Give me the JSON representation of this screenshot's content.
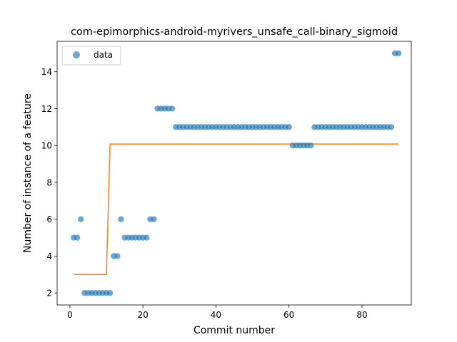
{
  "chart_data": {
    "type": "scatter",
    "title": "com-epimorphics-android-myrivers_unsafe_call-binary_sigmoid",
    "xlabel": "Commit number",
    "ylabel": "Number of instance of a feature",
    "xlim": [
      -3.5,
      93.5
    ],
    "ylim": [
      1.35,
      15.65
    ],
    "x_ticks": [
      0,
      20,
      40,
      60,
      80
    ],
    "y_ticks": [
      2,
      4,
      6,
      8,
      10,
      12,
      14
    ],
    "grid": false,
    "legend": {
      "position": "top-left",
      "entries": [
        "data"
      ]
    },
    "colors": {
      "data": "#1f77b4",
      "fit": "#ff7f0e"
    },
    "series": [
      {
        "name": "data",
        "kind": "scatter",
        "x": [
          1,
          2,
          3,
          4,
          5,
          6,
          7,
          8,
          9,
          10,
          11,
          12,
          13,
          14,
          15,
          16,
          17,
          18,
          19,
          20,
          21,
          22,
          23,
          24,
          25,
          26,
          27,
          28,
          29,
          30,
          31,
          32,
          33,
          34,
          35,
          36,
          37,
          38,
          39,
          40,
          41,
          42,
          43,
          44,
          45,
          46,
          47,
          48,
          49,
          50,
          51,
          52,
          53,
          54,
          55,
          56,
          57,
          58,
          59,
          60,
          61,
          62,
          63,
          64,
          65,
          66,
          67,
          68,
          69,
          70,
          71,
          72,
          73,
          74,
          75,
          76,
          77,
          78,
          79,
          80,
          81,
          82,
          83,
          84,
          85,
          86,
          87,
          88,
          89,
          90
        ],
        "y": [
          5,
          5,
          6,
          2,
          2,
          2,
          2,
          2,
          2,
          2,
          2,
          4,
          4,
          6,
          5,
          5,
          5,
          5,
          5,
          5,
          5,
          6,
          6,
          12,
          12,
          12,
          12,
          12,
          11,
          11,
          11,
          11,
          11,
          11,
          11,
          11,
          11,
          11,
          11,
          11,
          11,
          11,
          11,
          11,
          11,
          11,
          11,
          11,
          11,
          11,
          11,
          11,
          11,
          11,
          11,
          11,
          11,
          11,
          11,
          11,
          10,
          10,
          10,
          10,
          10,
          10,
          11,
          11,
          11,
          11,
          11,
          11,
          11,
          11,
          11,
          11,
          11,
          11,
          11,
          11,
          11,
          11,
          11,
          11,
          11,
          11,
          11,
          11,
          15,
          15
        ]
      },
      {
        "kind": "line",
        "x": [
          1,
          10,
          11,
          90
        ],
        "y": [
          3,
          3,
          10.08,
          10.08
        ]
      }
    ]
  }
}
